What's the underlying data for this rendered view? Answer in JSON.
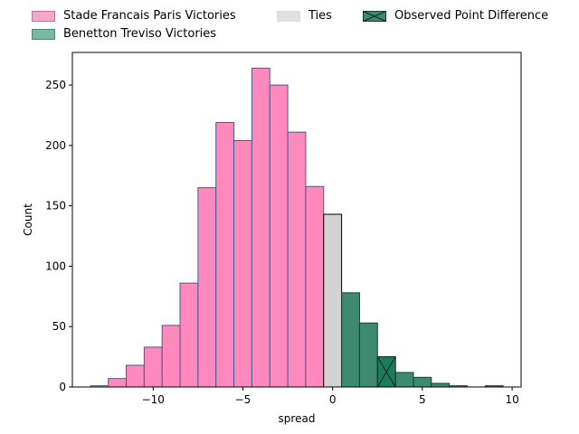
{
  "chart_data": {
    "type": "bar",
    "subtype": "histogram",
    "xlabel": "spread",
    "ylabel": "Count",
    "xlim": [
      -14.5,
      10.5
    ],
    "ylim": [
      0,
      277
    ],
    "x_ticks": [
      -10,
      -5,
      0,
      5,
      10
    ],
    "x_tick_labels": [
      "−10",
      "−5",
      "0",
      "5",
      "10"
    ],
    "y_ticks": [
      0,
      50,
      100,
      150,
      200,
      250
    ],
    "y_tick_labels": [
      "0",
      "50",
      "100",
      "150",
      "200",
      "250"
    ],
    "grid": false,
    "legend_position": "above plot",
    "series": [
      {
        "name": "Stade Francais Paris Victories",
        "color": "#ff88bc",
        "edge": "#4a5a8c",
        "bins": [
          {
            "x0": -13.5,
            "x1": -12.5,
            "count": 1
          },
          {
            "x0": -12.5,
            "x1": -11.5,
            "count": 7
          },
          {
            "x0": -11.5,
            "x1": -10.5,
            "count": 18
          },
          {
            "x0": -10.5,
            "x1": -9.5,
            "count": 33
          },
          {
            "x0": -9.5,
            "x1": -8.5,
            "count": 51
          },
          {
            "x0": -8.5,
            "x1": -7.5,
            "count": 86
          },
          {
            "x0": -7.5,
            "x1": -6.5,
            "count": 165
          },
          {
            "x0": -6.5,
            "x1": -5.5,
            "count": 219
          },
          {
            "x0": -5.5,
            "x1": -4.5,
            "count": 204
          },
          {
            "x0": -4.5,
            "x1": -3.5,
            "count": 264
          },
          {
            "x0": -3.5,
            "x1": -2.5,
            "count": 250
          },
          {
            "x0": -2.5,
            "x1": -1.5,
            "count": 211
          },
          {
            "x0": -1.5,
            "x1": -0.5,
            "count": 166
          }
        ]
      },
      {
        "name": "Ties",
        "color": "#d3d3d3",
        "edge": "#000000",
        "bins": [
          {
            "x0": -0.5,
            "x1": 0.5,
            "count": 143
          }
        ]
      },
      {
        "name": "Benetton Treviso Victories",
        "color": "#3d8a70",
        "edge": "#1a3d30",
        "bins": [
          {
            "x0": 0.5,
            "x1": 1.5,
            "count": 78
          },
          {
            "x0": 1.5,
            "x1": 2.5,
            "count": 53
          },
          {
            "x0": 2.5,
            "x1": 3.5,
            "count": 25
          },
          {
            "x0": 3.5,
            "x1": 4.5,
            "count": 12
          },
          {
            "x0": 4.5,
            "x1": 5.5,
            "count": 8
          },
          {
            "x0": 5.5,
            "x1": 6.5,
            "count": 3
          },
          {
            "x0": 6.5,
            "x1": 7.5,
            "count": 1
          },
          {
            "x0": 8.5,
            "x1": 9.5,
            "count": 1
          }
        ]
      },
      {
        "name": "Observed Point Difference",
        "color": "#1f7a5a",
        "edge": "#0d2b20",
        "hatch": "x",
        "bins": [
          {
            "x0": 2.5,
            "x1": 3.5,
            "count": 25
          }
        ]
      }
    ],
    "legend": [
      {
        "label": "Stade Francais Paris Victories",
        "color": "#f6a8cb",
        "edge": "#c86d9a"
      },
      {
        "label": "Benetton Treviso Victories",
        "color": "#7ab8a3",
        "edge": "#4d8a74"
      },
      {
        "label": "Ties",
        "color": "#e0e0e0",
        "edge": "#e0e0e0"
      },
      {
        "label": "Observed Point Difference",
        "color": "#3d8a70",
        "edge": "#1a3d30",
        "hatch": "x"
      }
    ]
  }
}
